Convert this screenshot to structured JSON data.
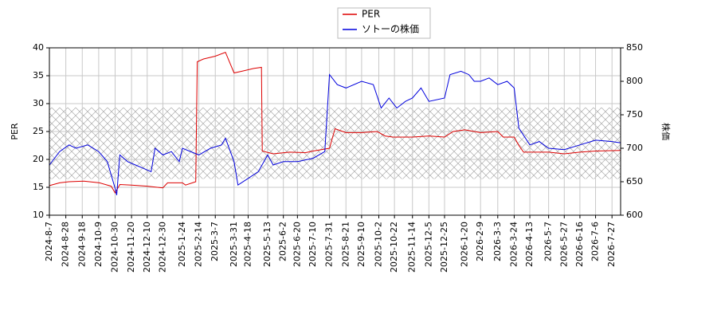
{
  "chart_data": {
    "type": "line",
    "xlim": [
      "2024-8-7",
      "2026-8-7"
    ],
    "xticks": [
      "2024-8-7",
      "2024-8-28",
      "2024-9-18",
      "2024-10-9",
      "2024-10-30",
      "2024-11-20",
      "2024-12-10",
      "2024-12-30",
      "2025-1-24",
      "2025-2-14",
      "2025-3-7",
      "2025-3-31",
      "2025-4-18",
      "2025-5-13",
      "2025-6-2",
      "2025-6-20",
      "2025-7-10",
      "2025-7-31",
      "2025-8-21",
      "2025-9-10",
      "2025-10-2",
      "2025-10-22",
      "2025-11-14",
      "2025-12-5",
      "2025-12-25",
      "2026-1-20",
      "2026-2-9",
      "2026-3-3",
      "2026-3-24",
      "2026-4-13",
      "2026-5-7",
      "2026-5-27",
      "2026-6-16",
      "2026-7-6",
      "2026-7-27"
    ],
    "ylabel": "PER",
    "ylim": [
      10,
      40
    ],
    "yticks": [
      10,
      15,
      20,
      25,
      30,
      35,
      40
    ],
    "y2label": "株価",
    "y2lim": [
      600,
      850
    ],
    "y2ticks": [
      600,
      650,
      700,
      750,
      800,
      850
    ],
    "band": [
      16.5,
      29.3
    ],
    "grid": true,
    "legend": "top",
    "series": [
      {
        "name": "PER",
        "color": "#dd0000",
        "x": [
          "2024-8-7",
          "2024-8-20",
          "2024-9-1",
          "2024-9-20",
          "2024-10-10",
          "2024-10-25",
          "2024-10-30",
          "2024-11-5",
          "2024-11-20",
          "2024-12-10",
          "2024-12-30",
          "2025-1-5",
          "2025-1-24",
          "2025-1-28",
          "2025-2-10",
          "2025-2-12",
          "2025-2-20",
          "2025-3-7",
          "2025-3-20",
          "2025-3-31",
          "2025-4-10",
          "2025-4-25",
          "2025-5-5",
          "2025-5-6",
          "2025-5-20",
          "2025-6-10",
          "2025-6-30",
          "2025-7-10",
          "2025-7-31",
          "2025-8-7",
          "2025-8-21",
          "2025-9-10",
          "2025-9-30",
          "2025-10-10",
          "2025-10-20",
          "2025-11-14",
          "2025-12-5",
          "2025-12-25",
          "2026-1-5",
          "2026-1-20",
          "2026-2-9",
          "2026-3-3",
          "2026-3-10",
          "2026-3-24",
          "2026-3-30",
          "2026-4-5",
          "2026-5-7",
          "2026-5-27",
          "2026-6-16",
          "2026-7-6",
          "2026-8-7"
        ],
        "values": [
          15.3,
          15.8,
          16.0,
          16.1,
          15.8,
          15.2,
          14.0,
          15.5,
          15.4,
          15.2,
          14.9,
          15.8,
          15.8,
          15.4,
          16.0,
          37.5,
          38.0,
          38.5,
          39.2,
          35.5,
          35.8,
          36.3,
          36.5,
          21.5,
          21.0,
          21.3,
          21.2,
          21.5,
          22.0,
          25.5,
          24.8,
          24.8,
          25.0,
          24.2,
          24.0,
          24.0,
          24.2,
          24.0,
          25.0,
          25.3,
          24.8,
          25.0,
          24.0,
          24.0,
          22.5,
          21.3,
          21.3,
          21.0,
          21.3,
          21.5,
          21.6
        ]
      },
      {
        "name": "ソトーの株価",
        "color": "#0000dd",
        "axis": "y2",
        "x": [
          "2024-8-7",
          "2024-8-20",
          "2024-9-1",
          "2024-9-10",
          "2024-9-25",
          "2024-10-9",
          "2024-10-20",
          "2024-10-30",
          "2024-11-1",
          "2024-11-5",
          "2024-11-15",
          "2024-11-25",
          "2024-12-5",
          "2024-12-15",
          "2024-12-20",
          "2024-12-30",
          "2025-1-10",
          "2025-1-20",
          "2025-1-24",
          "2025-2-14",
          "2025-3-1",
          "2025-3-15",
          "2025-3-20",
          "2025-3-31",
          "2025-4-5",
          "2025-4-18",
          "2025-5-1",
          "2025-5-13",
          "2025-5-20",
          "2025-6-2",
          "2025-6-20",
          "2025-7-10",
          "2025-7-25",
          "2025-7-31",
          "2025-8-10",
          "2025-8-21",
          "2025-9-10",
          "2025-9-25",
          "2025-10-5",
          "2025-10-15",
          "2025-10-25",
          "2025-11-5",
          "2025-11-14",
          "2025-11-25",
          "2025-12-5",
          "2025-12-25",
          "2026-1-1",
          "2026-1-15",
          "2026-1-25",
          "2026-2-1",
          "2026-2-9",
          "2026-2-20",
          "2026-3-3",
          "2026-3-15",
          "2026-3-24",
          "2026-3-30",
          "2026-4-13",
          "2026-4-25",
          "2026-5-7",
          "2026-5-27",
          "2026-6-16",
          "2026-7-6",
          "2026-7-27",
          "2026-8-7"
        ],
        "values": [
          675,
          695,
          705,
          700,
          705,
          695,
          680,
          640,
          630,
          690,
          680,
          675,
          670,
          665,
          700,
          690,
          695,
          680,
          700,
          690,
          700,
          705,
          715,
          680,
          645,
          655,
          665,
          690,
          675,
          680,
          680,
          685,
          695,
          810,
          795,
          790,
          800,
          795,
          760,
          775,
          760,
          770,
          775,
          790,
          770,
          775,
          810,
          815,
          810,
          800,
          800,
          805,
          795,
          800,
          790,
          730,
          705,
          710,
          700,
          698,
          705,
          712,
          710,
          708
        ]
      }
    ]
  }
}
